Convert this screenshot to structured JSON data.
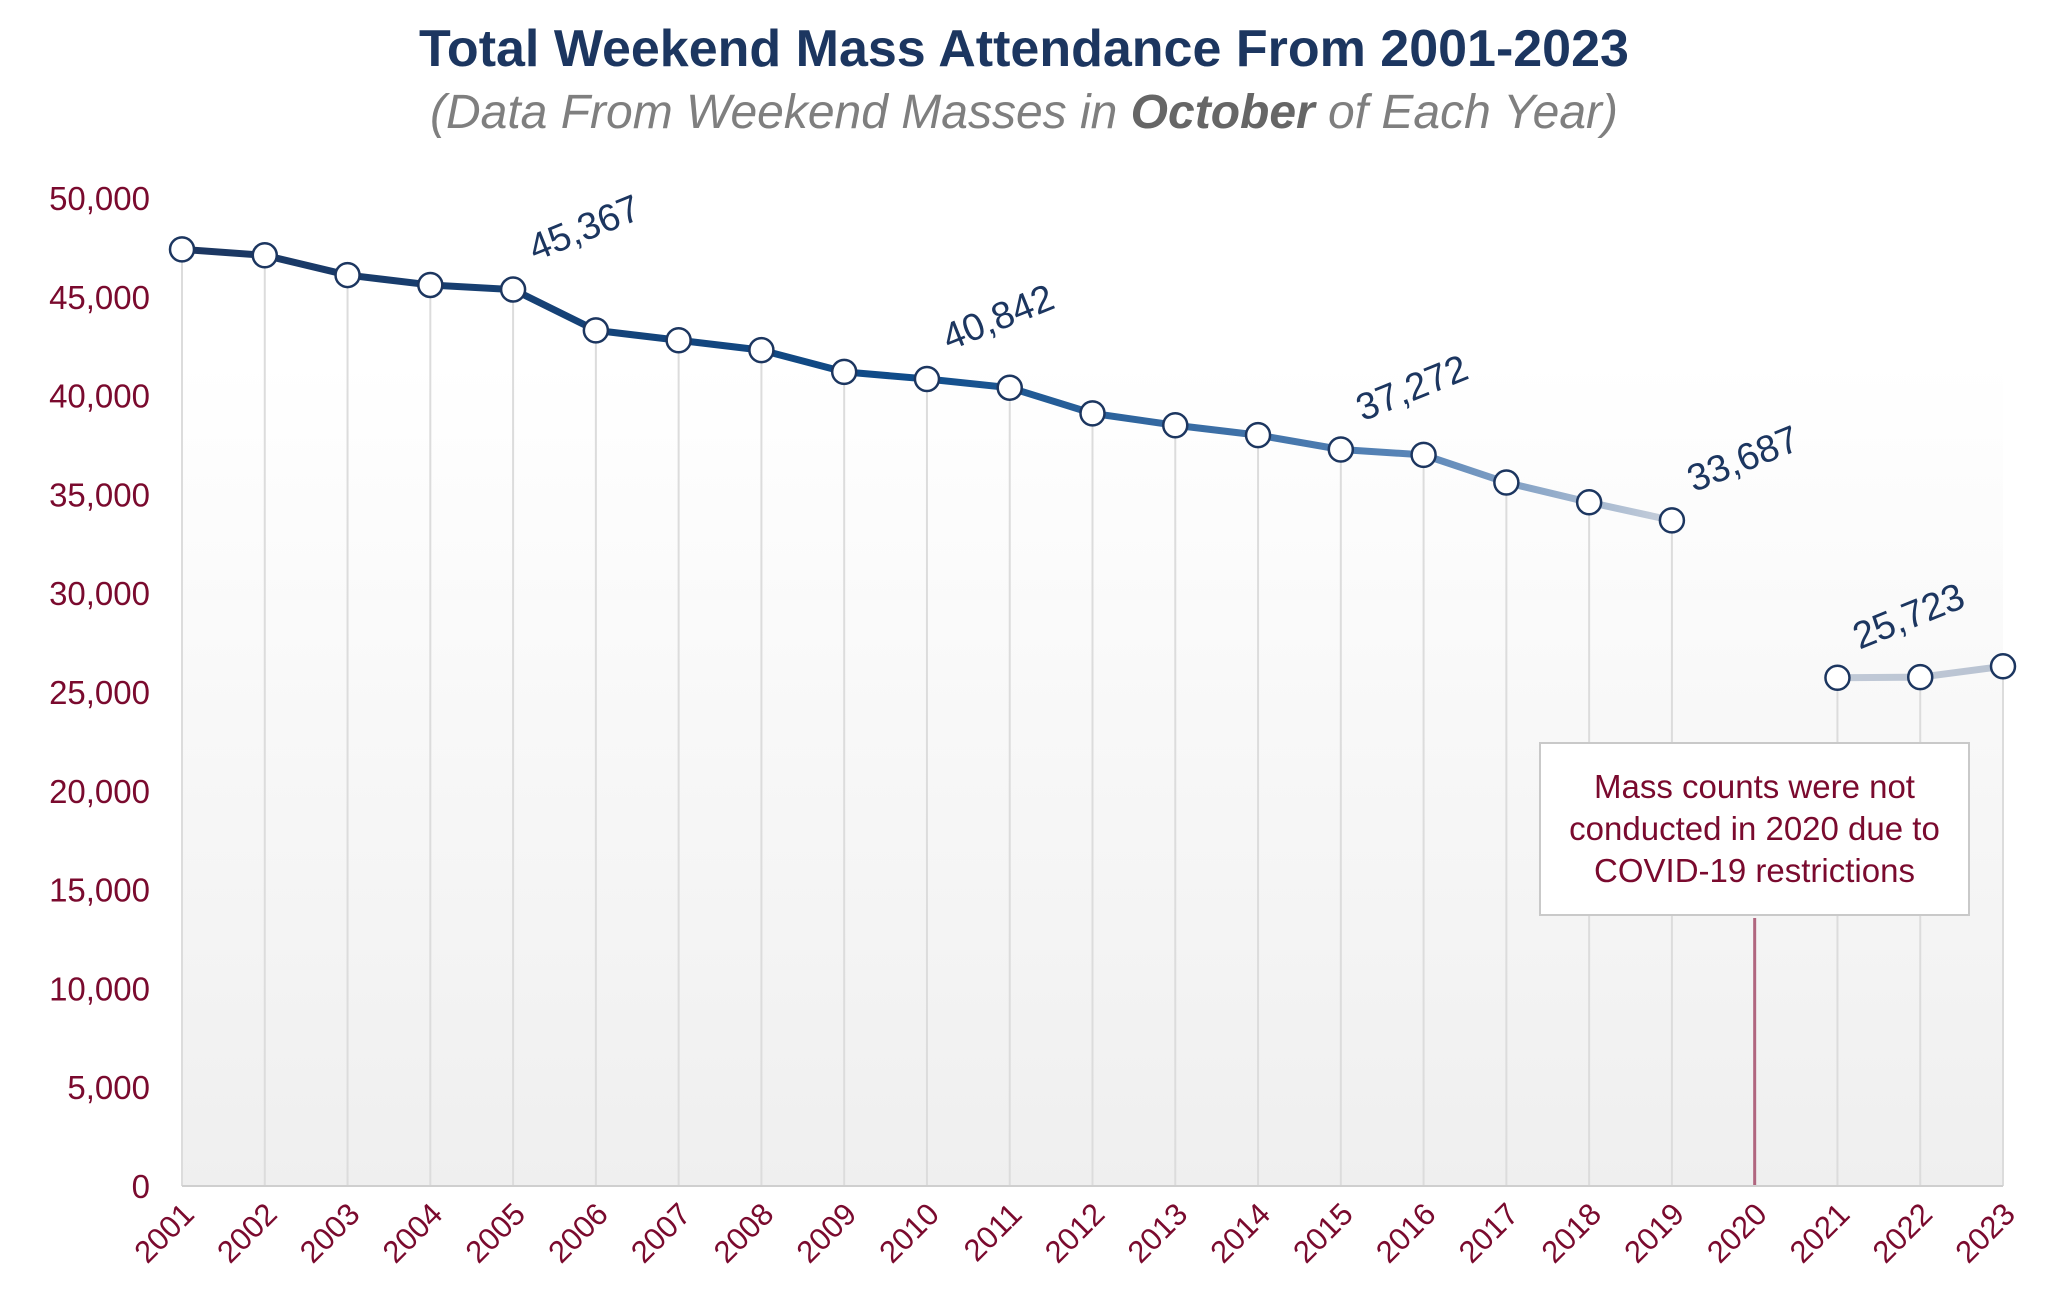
{
  "chart_data": {
    "type": "line",
    "title": "Total Weekend Mass Attendance From 2001-2023",
    "subtitle_parts": [
      "(Data From Weekend Masses in ",
      "October",
      " of Each Year)"
    ],
    "categories": [
      "2001",
      "2002",
      "2003",
      "2004",
      "2005",
      "2006",
      "2007",
      "2008",
      "2009",
      "2010",
      "2011",
      "2012",
      "2013",
      "2014",
      "2015",
      "2016",
      "2017",
      "2018",
      "2019",
      "2020",
      "2021",
      "2022",
      "2023"
    ],
    "values": [
      47400,
      47100,
      46100,
      45600,
      45367,
      43300,
      42800,
      42300,
      41200,
      40842,
      40400,
      39100,
      38500,
      38000,
      37272,
      37000,
      35600,
      34600,
      33687,
      null,
      25723,
      25750,
      26300
    ],
    "data_labels": {
      "2005": "45,367",
      "2010": "40,842",
      "2015": "37,272",
      "2019": "33,687",
      "2021": "25,723"
    },
    "ylim": [
      0,
      50000
    ],
    "yticks": [
      0,
      5000,
      10000,
      15000,
      20000,
      25000,
      30000,
      35000,
      40000,
      45000,
      50000
    ],
    "ytick_labels": [
      "0",
      "5,000",
      "10,000",
      "15,000",
      "20,000",
      "25,000",
      "30,000",
      "35,000",
      "40,000",
      "45,000",
      "50,000"
    ],
    "xlabel": "",
    "ylabel": "",
    "grid": "vertical",
    "legend": "none",
    "annotation": {
      "year": "2020",
      "text": "Mass counts were not conducted in 2020 due to COVID-19 restrictions"
    },
    "colors": {
      "title": "#1c3660",
      "subtitle": "#7f7f7f",
      "axis_labels": "#7a0a2e",
      "line_start": "#1c3660",
      "line_mid": "#0f4c8a",
      "line_end": "#c9d0db",
      "marker_edge": "#1c3660",
      "annotation_line": "#b0667f"
    }
  }
}
